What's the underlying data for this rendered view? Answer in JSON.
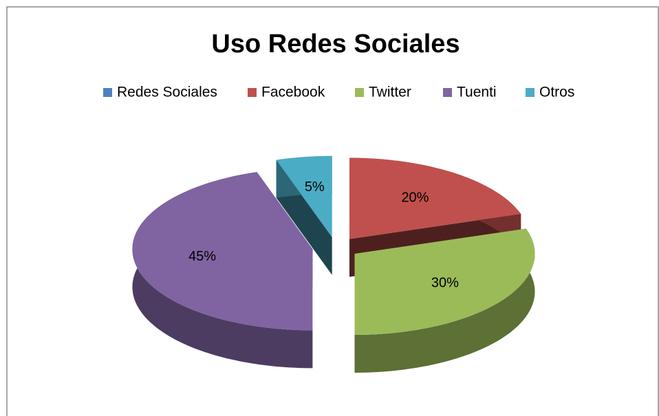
{
  "chart_data": {
    "type": "pie3d",
    "title": "Uso Redes Sociales",
    "categories": [
      "Redes Sociales",
      "Facebook",
      "Twitter",
      "Tuenti",
      "Otros"
    ],
    "values": [
      0,
      20,
      30,
      45,
      5
    ],
    "value_labels": [
      null,
      "20%",
      "30%",
      "45%",
      "5%"
    ],
    "colors": [
      "#4f81bd",
      "#c0504d",
      "#9bbb59",
      "#8064a2",
      "#4bacc6"
    ],
    "legend": "top",
    "exploded": true
  }
}
